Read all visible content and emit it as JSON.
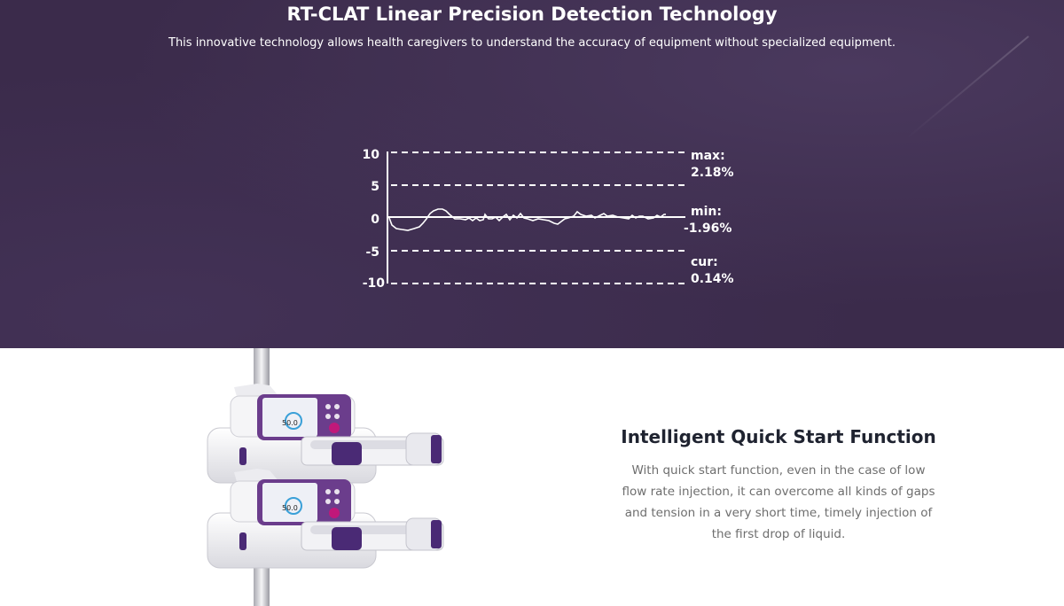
{
  "hero": {
    "title": "RT-CLAT Linear Precision Detection Technology",
    "subtitle": "This innovative technology allows health caregivers to understand the accuracy of equipment without specialized equipment."
  },
  "precision_chart": {
    "ticks": [
      "10",
      "5",
      "0",
      "-5",
      "-10"
    ],
    "max_label": "max:",
    "max_value": "2.18%",
    "min_label": "min:",
    "min_value": "-1.96%",
    "cur_label": "cur:",
    "cur_value": "0.14%"
  },
  "feature": {
    "title": "Intelligent Quick Start Function",
    "body": "With quick start function, even in the case of low flow rate injection, it can overcome all kinds of gaps and tension in a very short time, timely injection of the first drop of liquid."
  },
  "device": {
    "screen_value": "50.0",
    "accent_color": "#c0187a"
  },
  "colors": {
    "hero_background": "#3b2b4b",
    "chart_line": "#ffffff",
    "device_accent": "#5a3a8a"
  }
}
